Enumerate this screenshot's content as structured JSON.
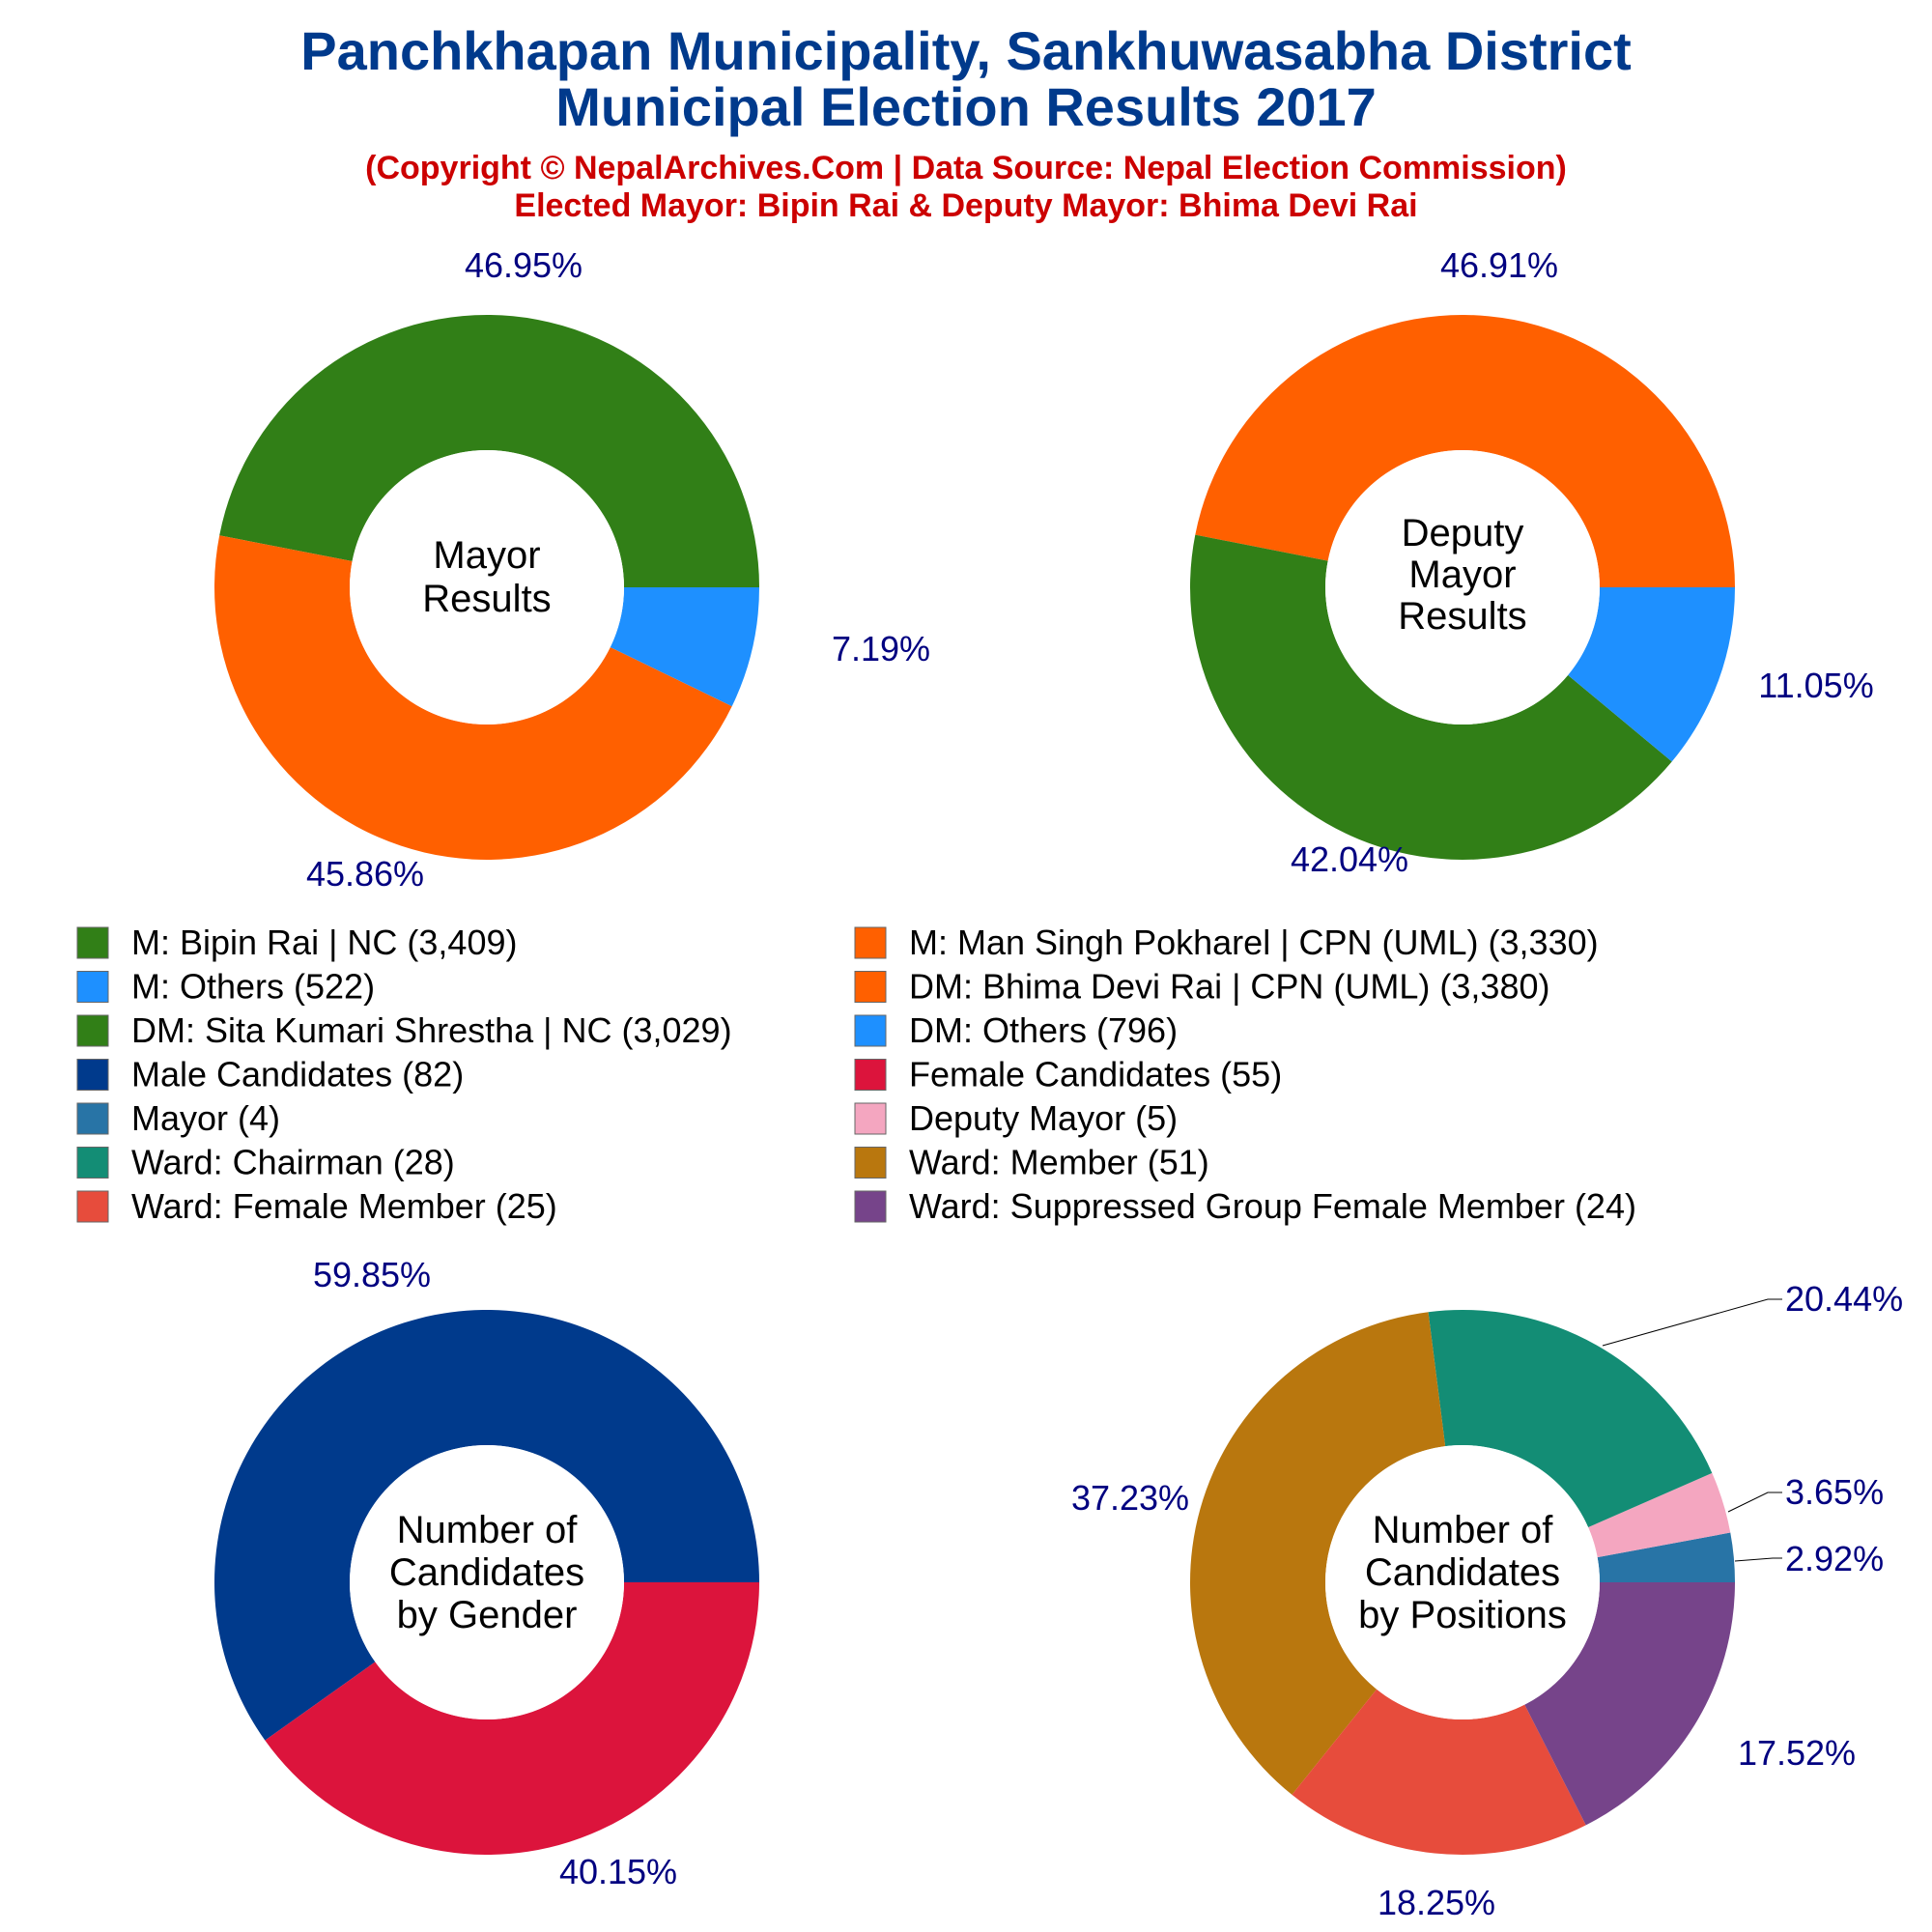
{
  "header": {
    "title_line1": "Panchkhapan Municipality, Sankhuwasabha District",
    "title_line2": "Municipal Election Results 2017",
    "subtitle_line1": "(Copyright © NepalArchives.Com | Data Source: Nepal Election Commission)",
    "subtitle_line2": "Elected Mayor: Bipin Rai & Deputy Mayor: Bhima Devi Rai"
  },
  "legend": [
    {
      "label": "M: Bipin Rai | NC (3,409)",
      "color": "#317F17"
    },
    {
      "label": "M: Man Singh Pokharel | CPN (UML) (3,330)",
      "color": "#FF6000"
    },
    {
      "label": "M: Others (522)",
      "color": "#1E90FF"
    },
    {
      "label": "DM: Bhima Devi Rai | CPN (UML) (3,380)",
      "color": "#FF6000"
    },
    {
      "label": "DM: Sita Kumari Shrestha | NC (3,029)",
      "color": "#317F17"
    },
    {
      "label": "DM: Others (796)",
      "color": "#1E90FF"
    },
    {
      "label": "Male Candidates (82)",
      "color": "#003A8C"
    },
    {
      "label": "Female Candidates (55)",
      "color": "#DC143C"
    },
    {
      "label": "Mayor (4)",
      "color": "#2874A6"
    },
    {
      "label": "Deputy Mayor (5)",
      "color": "#F4A6C0"
    },
    {
      "label": "Ward: Chairman (28)",
      "color": "#138D75"
    },
    {
      "label": "Ward: Member (51)",
      "color": "#B9770E"
    },
    {
      "label": "Ward: Female Member (25)",
      "color": "#E74C3C"
    },
    {
      "label": "Ward: Suppressed Group Female Member (24)",
      "color": "#76448A"
    }
  ],
  "chart_data": [
    {
      "type": "pie",
      "center_label": [
        "Mayor",
        "Results"
      ],
      "slices": [
        {
          "label": "M: Bipin Rai | NC",
          "value": 3409,
          "percent_label": "46.95%",
          "color": "#317F17"
        },
        {
          "label": "M: Man Singh Pokharel | CPN (UML)",
          "value": 3330,
          "percent_label": "45.86%",
          "color": "#FF6000"
        },
        {
          "label": "M: Others",
          "value": 522,
          "percent_label": "7.19%",
          "color": "#1E90FF"
        }
      ]
    },
    {
      "type": "pie",
      "center_label": [
        "Deputy",
        "Mayor",
        "Results"
      ],
      "slices": [
        {
          "label": "DM: Bhima Devi Rai | CPN (UML)",
          "value": 3380,
          "percent_label": "46.91%",
          "color": "#FF6000"
        },
        {
          "label": "DM: Sita Kumari Shrestha | NC",
          "value": 3029,
          "percent_label": "42.04%",
          "color": "#317F17"
        },
        {
          "label": "DM: Others",
          "value": 796,
          "percent_label": "11.05%",
          "color": "#1E90FF"
        }
      ]
    },
    {
      "type": "pie",
      "center_label": [
        "Number of",
        "Candidates",
        "by Gender"
      ],
      "slices": [
        {
          "label": "Male Candidates",
          "value": 82,
          "percent_label": "59.85%",
          "color": "#003A8C"
        },
        {
          "label": "Female Candidates",
          "value": 55,
          "percent_label": "40.15%",
          "color": "#DC143C"
        }
      ]
    },
    {
      "type": "pie",
      "center_label": [
        "Number of",
        "Candidates",
        "by Positions"
      ],
      "slices": [
        {
          "label": "Mayor",
          "value": 4,
          "percent_label": "2.92%",
          "color": "#2874A6"
        },
        {
          "label": "Deputy Mayor",
          "value": 5,
          "percent_label": "3.65%",
          "color": "#F4A6C0"
        },
        {
          "label": "Ward: Chairman",
          "value": 28,
          "percent_label": "20.44%",
          "color": "#138D75"
        },
        {
          "label": "Ward: Member",
          "value": 51,
          "percent_label": "37.23%",
          "color": "#B9770E"
        },
        {
          "label": "Ward: Female Member",
          "value": 25,
          "percent_label": "18.25%",
          "color": "#E74C3C"
        },
        {
          "label": "Ward: Suppressed Group Female Member",
          "value": 24,
          "percent_label": "17.52%",
          "color": "#76448A"
        }
      ]
    }
  ]
}
